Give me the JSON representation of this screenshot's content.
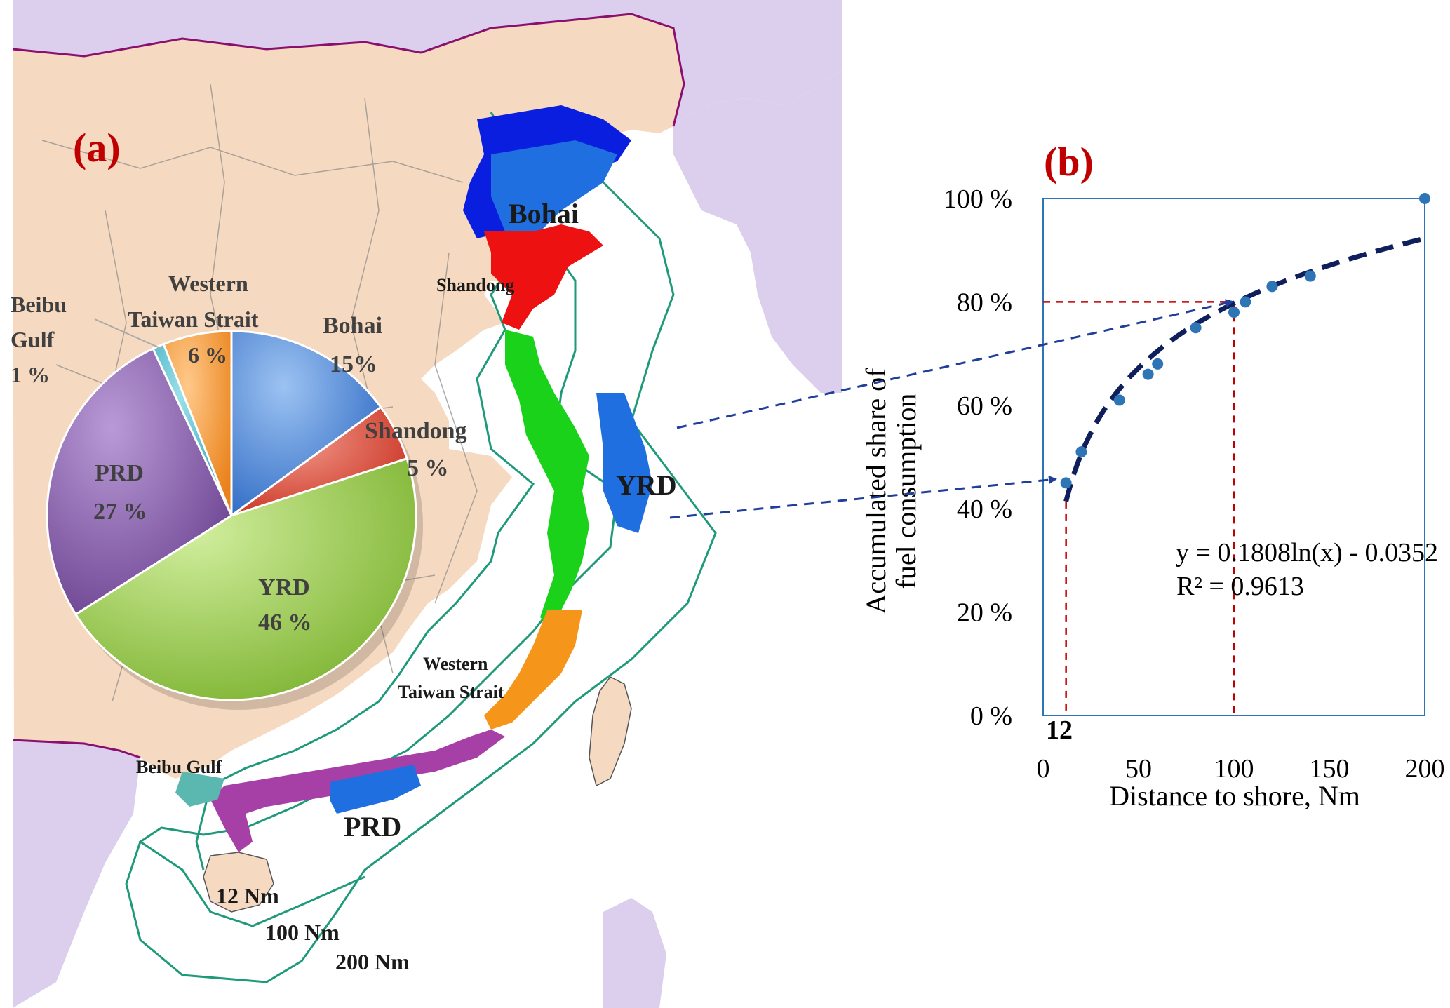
{
  "panel_a": {
    "letter": "(a)",
    "map_labels": {
      "bohai": "Bohai",
      "shandong": "Shandong",
      "yrd": "YRD",
      "western_taiwan_strait_line1": "Western",
      "western_taiwan_strait_line2": "Taiwan Strait",
      "beibu_gulf": "Beibu Gulf",
      "prd": "PRD",
      "nm12": "12 Nm",
      "nm100": "100 Nm",
      "nm200": "200 Nm"
    },
    "pie_labels": {
      "bohai_name": "Bohai",
      "bohai_pct": "15%",
      "shandong_name": "Shandong",
      "shandong_pct": "5 %",
      "yrd_name": "YRD",
      "yrd_pct": "46 %",
      "prd_name": "PRD",
      "prd_pct": "27 %",
      "beibu_line1": "Beibu",
      "beibu_line2": "Gulf",
      "beibu_pct": "1 %",
      "wts_line1": "Western",
      "wts_line2": "Taiwan  Strait",
      "wts_pct": "6 %"
    }
  },
  "panel_b": {
    "letter": "(b)",
    "equation": "y = 0.1808ln(x) - 0.0352",
    "r_squared": "R² = 0.9613",
    "marker_12": "12",
    "ylabel_line1": "Accumulated share of",
    "ylabel_line2": "fuel consumption",
    "xlabel": "Distance to shore, Nm",
    "x_ticks": [
      "0",
      "50",
      "100",
      "150",
      "200"
    ],
    "y_ticks": [
      "0 %",
      "20 %",
      "40 %",
      "60 %",
      "80 %",
      "100 %"
    ]
  },
  "colors": {
    "land": "#f5d9c0",
    "other_land": "#dccfee",
    "sea": "#ffffff",
    "border": "#8a0f6e",
    "bohai": "#3a78d4",
    "shandong": "#e03a2a",
    "yrd": "#8ac23c",
    "prd": "#7b4f9e",
    "beibu": "#3fb8c9",
    "wts": "#f5952a",
    "points": "#2e75b6",
    "fit": "#0f1f5c",
    "guides": "#c00000",
    "arrows": "#1f3f9a",
    "panel_red": "#c00000"
  },
  "chart_data": [
    {
      "type": "pie",
      "categories": [
        "Bohai",
        "Shandong",
        "YRD",
        "PRD",
        "Beibu Gulf",
        "Western Taiwan Strait"
      ],
      "values": [
        15,
        5,
        46,
        27,
        1,
        6
      ],
      "units": "%"
    },
    {
      "type": "scatter",
      "xlabel": "Distance to shore, Nm",
      "ylabel": "Accumulated share of fuel consumption",
      "xlim": [
        0,
        200
      ],
      "ylim": [
        0,
        100
      ],
      "x_tick_values": [
        0,
        50,
        100,
        150,
        200
      ],
      "y_tick_values": [
        0,
        20,
        40,
        60,
        80,
        100
      ],
      "series": [
        {
          "x": [
            12,
            20,
            40,
            55,
            60,
            80,
            100,
            106,
            120,
            140,
            200
          ],
          "y": [
            45,
            51,
            61,
            66,
            68,
            75,
            78,
            80,
            83,
            85,
            100
          ]
        }
      ],
      "fit": {
        "equation": "y = 0.1808ln(x) - 0.0352",
        "r_squared": 0.9613,
        "a": 0.1808,
        "b": -0.0352,
        "x_start": 12,
        "x_end": 200
      },
      "guides": [
        {
          "x": 12
        },
        {
          "x": 100,
          "y": 80
        }
      ]
    }
  ]
}
